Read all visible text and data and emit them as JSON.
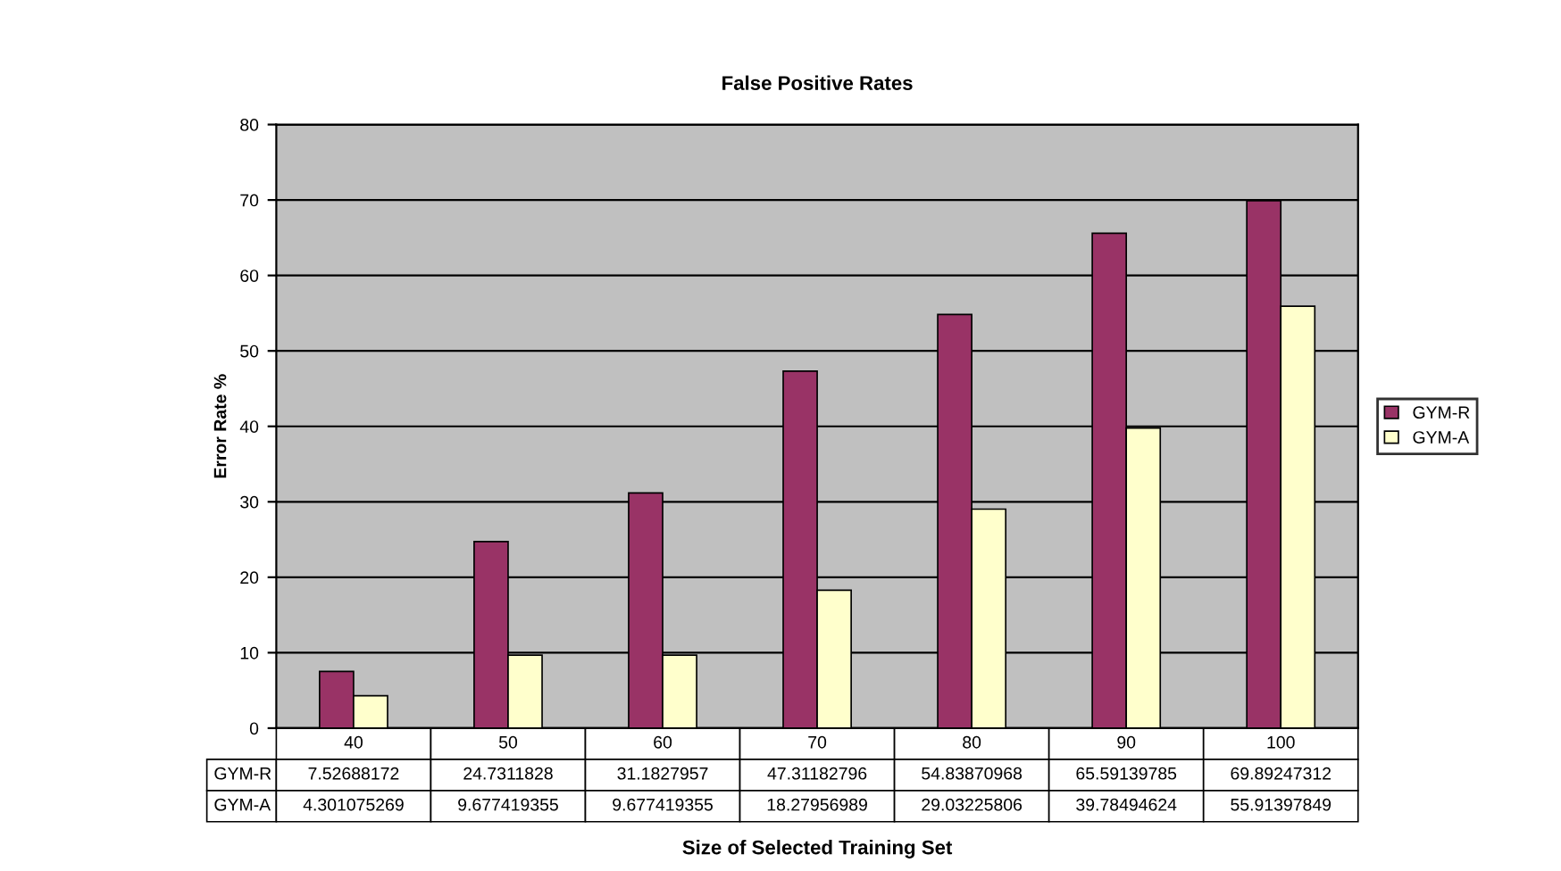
{
  "chart_data": {
    "type": "bar",
    "title": "False Positive Rates",
    "xlabel": "Size of Selected Training Set",
    "ylabel": "Error Rate %",
    "categories": [
      "40",
      "50",
      "60",
      "70",
      "80",
      "90",
      "100"
    ],
    "series": [
      {
        "name": "GYM-R",
        "color": "#993366",
        "values": [
          7.52688172,
          24.7311828,
          31.1827957,
          47.31182796,
          54.83870968,
          65.59139785,
          69.89247312
        ]
      },
      {
        "name": "GYM-A",
        "color": "#ffffcc",
        "values": [
          4.301075269,
          9.677419355,
          9.677419355,
          18.27956989,
          29.03225806,
          39.78494624,
          55.91397849
        ]
      }
    ],
    "ylim": [
      0,
      80
    ],
    "yticks": [
      0,
      10,
      20,
      30,
      40,
      50,
      60,
      70,
      80
    ],
    "grid": "y",
    "legend": "right",
    "data_labels": true
  }
}
